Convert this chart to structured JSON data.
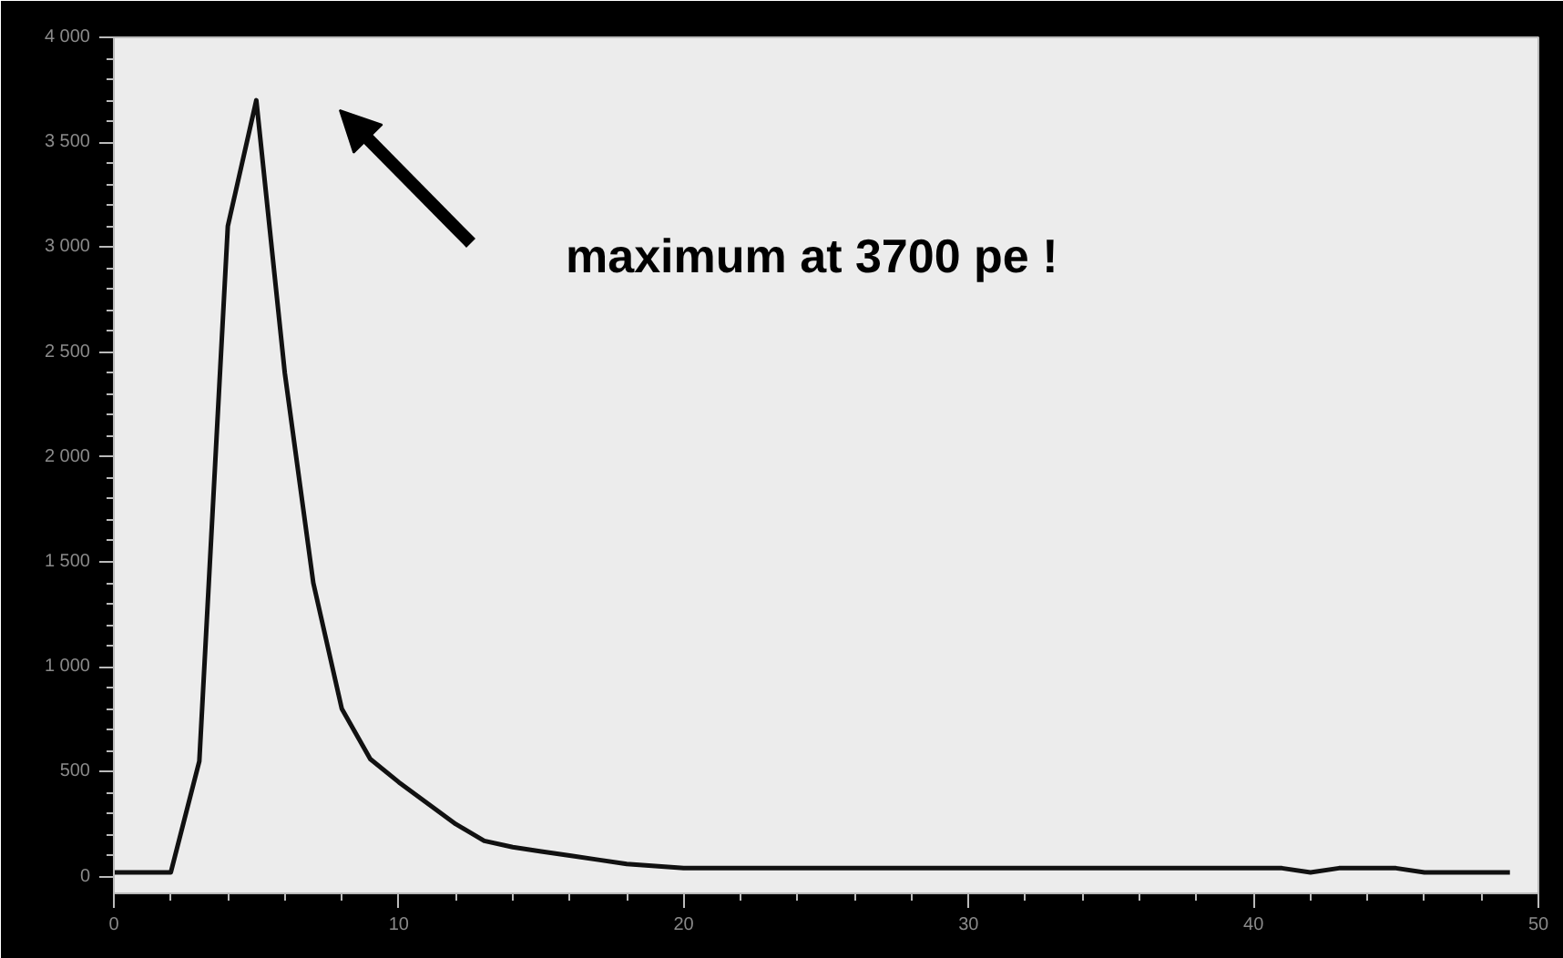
{
  "chart_data": {
    "type": "line",
    "color": "#111111",
    "x": [
      0,
      1,
      2,
      3,
      4,
      5,
      6,
      7,
      8,
      9,
      10,
      11,
      12,
      13,
      14,
      15,
      16,
      17,
      18,
      19,
      20,
      22,
      25,
      30,
      35,
      40,
      41,
      42,
      43,
      44,
      45,
      46,
      47,
      48,
      49
    ],
    "values": [
      20,
      20,
      20,
      550,
      3100,
      3700,
      2400,
      1400,
      800,
      560,
      450,
      350,
      250,
      170,
      140,
      120,
      100,
      80,
      60,
      50,
      40,
      40,
      40,
      40,
      40,
      40,
      40,
      20,
      40,
      40,
      40,
      20,
      20,
      20,
      20
    ],
    "xlim": [
      0,
      50
    ],
    "ylim": [
      -80,
      4000
    ],
    "xticks": [
      0,
      10,
      20,
      30,
      40,
      50
    ],
    "yticks": [
      0,
      500,
      {
        "value": 1000,
        "label": "1 000"
      },
      {
        "value": 1500,
        "label": "1 500"
      },
      {
        "value": 2000,
        "label": "2 000"
      },
      {
        "value": 2500,
        "label": "2 500"
      },
      {
        "value": 3000,
        "label": "3 000"
      },
      {
        "value": 3500,
        "label": "3 500"
      },
      {
        "value": 4000,
        "label": "4 000"
      }
    ],
    "grid": false,
    "marker": "none",
    "line_style": "solid",
    "annotations": [
      "maximum at 3700 pe !"
    ]
  }
}
